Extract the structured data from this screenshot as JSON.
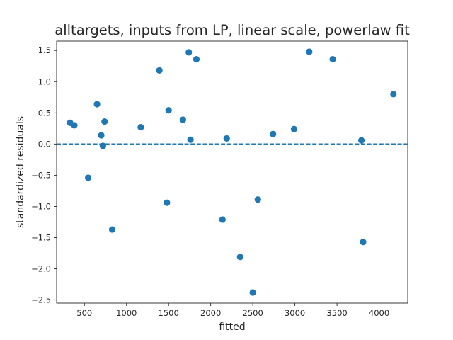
{
  "chart_data": {
    "type": "scatter",
    "title": "alltargets, inputs from LP, linear scale, powerlaw fit",
    "xlabel": "fitted",
    "ylabel": "standardized residuals",
    "xlim": [
      170,
      4340
    ],
    "ylim": [
      -2.55,
      1.65
    ],
    "xticks": [
      500,
      1000,
      1500,
      2000,
      2500,
      3000,
      3500,
      4000
    ],
    "yticks": [
      -2.5,
      -2.0,
      -1.5,
      -1.0,
      -0.5,
      0.0,
      0.5,
      1.0,
      1.5
    ],
    "xtick_labels": [
      "500",
      "1000",
      "1500",
      "2000",
      "2500",
      "3000",
      "3500",
      "4000"
    ],
    "ytick_labels": [
      "−2.5",
      "−2.0",
      "−1.5",
      "−1.0",
      "−0.5",
      "0.0",
      "0.5",
      "1.0",
      "1.5"
    ],
    "reference_line": {
      "y": 0.0,
      "style": "dashed",
      "color": "#1f77b4"
    },
    "marker_color": "#1f77b4",
    "grid": false,
    "points": [
      {
        "x": 330,
        "y": 0.34
      },
      {
        "x": 380,
        "y": 0.3
      },
      {
        "x": 545,
        "y": -0.54
      },
      {
        "x": 650,
        "y": 0.64
      },
      {
        "x": 700,
        "y": 0.14
      },
      {
        "x": 720,
        "y": -0.03
      },
      {
        "x": 740,
        "y": 0.36
      },
      {
        "x": 830,
        "y": -1.37
      },
      {
        "x": 1170,
        "y": 0.27
      },
      {
        "x": 1390,
        "y": 1.18
      },
      {
        "x": 1480,
        "y": -0.94
      },
      {
        "x": 1500,
        "y": 0.54
      },
      {
        "x": 1670,
        "y": 0.39
      },
      {
        "x": 1740,
        "y": 1.47
      },
      {
        "x": 1760,
        "y": 0.07
      },
      {
        "x": 1830,
        "y": 1.36
      },
      {
        "x": 2140,
        "y": -1.21
      },
      {
        "x": 2190,
        "y": 0.09
      },
      {
        "x": 2350,
        "y": -1.81
      },
      {
        "x": 2500,
        "y": -2.38
      },
      {
        "x": 2560,
        "y": -0.89
      },
      {
        "x": 2740,
        "y": 0.16
      },
      {
        "x": 2990,
        "y": 0.24
      },
      {
        "x": 3170,
        "y": 1.48
      },
      {
        "x": 3450,
        "y": 1.36
      },
      {
        "x": 3790,
        "y": 0.06
      },
      {
        "x": 3810,
        "y": -1.57
      },
      {
        "x": 4170,
        "y": 0.8
      }
    ]
  }
}
